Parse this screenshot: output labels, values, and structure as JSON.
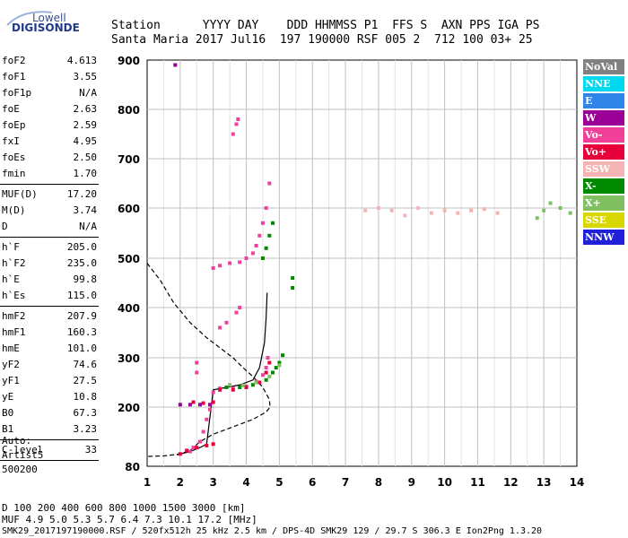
{
  "logo": {
    "brand_top": "Lowell",
    "brand_bottom": "DIGISONDE"
  },
  "header": {
    "row1": "Station      YYYY DAY    DDD HHMMSS P1  FFS S  AXN PPS IGA PS",
    "row2": "Santa Maria 2017 Jul16  197 190000 RSF 005 2  712 100 03+ 25"
  },
  "params": [
    [
      {
        "name": "foF2",
        "value": "4.613"
      },
      {
        "name": "foF1",
        "value": "3.55"
      },
      {
        "name": "foF1p",
        "value": "N/A"
      },
      {
        "name": "foE",
        "value": "2.63"
      },
      {
        "name": "foEp",
        "value": "2.59"
      },
      {
        "name": "fxI",
        "value": "4.95"
      },
      {
        "name": "foEs",
        "value": "2.50"
      },
      {
        "name": "fmin",
        "value": "1.70"
      }
    ],
    [
      {
        "name": "MUF(D)",
        "value": "17.20"
      },
      {
        "name": "M(D)",
        "value": "3.74"
      },
      {
        "name": "D",
        "value": "N/A"
      }
    ],
    [
      {
        "name": "h`F",
        "value": "205.0"
      },
      {
        "name": "h`F2",
        "value": "235.0"
      },
      {
        "name": "h`E",
        "value": "99.8"
      },
      {
        "name": "h`Es",
        "value": "115.0"
      }
    ],
    [
      {
        "name": "hmF2",
        "value": "207.9"
      },
      {
        "name": "hmF1",
        "value": "160.3"
      },
      {
        "name": "hmE",
        "value": "101.0"
      },
      {
        "name": "yF2",
        "value": "74.6"
      },
      {
        "name": "yF1",
        "value": "27.5"
      },
      {
        "name": "yE",
        "value": "10.8"
      },
      {
        "name": "B0",
        "value": "67.3"
      },
      {
        "name": "B1",
        "value": "3.23"
      }
    ],
    [
      {
        "name": "C-level",
        "value": "33"
      }
    ]
  ],
  "auto": {
    "line1": "Auto:",
    "line2": "Artist5",
    "line3": "500200"
  },
  "legend": [
    {
      "label": "NoVal",
      "color": "#808080"
    },
    {
      "label": "NNE",
      "color": "#00d8f0"
    },
    {
      "label": "E",
      "color": "#2f86e8"
    },
    {
      "label": "W",
      "color": "#9a0098"
    },
    {
      "label": "Vo-",
      "color": "#f0409a"
    },
    {
      "label": "Vo+",
      "color": "#e8003a"
    },
    {
      "label": "SSW",
      "color": "#f4b4b4"
    },
    {
      "label": "X-",
      "color": "#008a00"
    },
    {
      "label": "X+",
      "color": "#80c060"
    },
    {
      "label": "SSE",
      "color": "#d8d800"
    },
    {
      "label": "NNW",
      "color": "#2020d8"
    }
  ],
  "footer": {
    "d_line": "D     100  200  400  600  800 1000 1500 3000 [km]",
    "muf_line": "MUF   4.9  5.0  5.3  5.7  6.4  7.3 10.1 17.2 [MHz]",
    "status": "SMK29_2017197190000.RSF / 520fx512h 25 kHz 2.5 km / DPS-4D SMK29 129 / 29.7 S 306.3 E Ion2Png 1.3.20"
  },
  "chart_data": {
    "type": "scatter",
    "xlim": [
      1,
      14
    ],
    "ylim": [
      80,
      900
    ],
    "x_ticks": [
      1,
      2,
      3,
      4,
      5,
      6,
      7,
      8,
      9,
      10,
      11,
      12,
      13,
      14
    ],
    "y_ticks": [
      80,
      200,
      300,
      400,
      500,
      600,
      700,
      800,
      900
    ],
    "grid": true,
    "series": [
      {
        "name": "Vo-",
        "color": "#f0409a",
        "points": [
          [
            2.3,
            110
          ],
          [
            2.4,
            118
          ],
          [
            2.6,
            130
          ],
          [
            2.7,
            150
          ],
          [
            2.8,
            175
          ],
          [
            2.9,
            195
          ],
          [
            3.0,
            230
          ],
          [
            3.2,
            238
          ],
          [
            3.6,
            238
          ],
          [
            4.0,
            242
          ],
          [
            4.3,
            252
          ],
          [
            4.5,
            265
          ],
          [
            4.6,
            280
          ],
          [
            4.65,
            300
          ],
          [
            3.2,
            360
          ],
          [
            3.4,
            370
          ],
          [
            3.7,
            390
          ],
          [
            3.8,
            400
          ],
          [
            2.5,
            270
          ],
          [
            2.5,
            290
          ],
          [
            3.0,
            480
          ],
          [
            3.2,
            485
          ],
          [
            3.5,
            490
          ],
          [
            3.8,
            492
          ],
          [
            4.0,
            500
          ],
          [
            4.2,
            510
          ],
          [
            4.3,
            525
          ],
          [
            4.4,
            545
          ],
          [
            4.5,
            570
          ],
          [
            4.6,
            600
          ],
          [
            4.7,
            650
          ],
          [
            3.6,
            750
          ],
          [
            3.7,
            770
          ],
          [
            3.75,
            780
          ]
        ]
      },
      {
        "name": "Vo+",
        "color": "#e8003a",
        "points": [
          [
            2.0,
            105
          ],
          [
            2.2,
            112
          ],
          [
            2.5,
            118
          ],
          [
            2.8,
            122
          ],
          [
            3.0,
            125
          ],
          [
            3.2,
            235
          ],
          [
            3.6,
            235
          ],
          [
            4.0,
            240
          ],
          [
            4.4,
            250
          ],
          [
            4.6,
            270
          ],
          [
            4.7,
            290
          ],
          [
            2.4,
            210
          ],
          [
            2.7,
            208
          ],
          [
            3.0,
            210
          ]
        ]
      },
      {
        "name": "X-",
        "color": "#008a00",
        "points": [
          [
            3.4,
            240
          ],
          [
            3.8,
            240
          ],
          [
            4.2,
            245
          ],
          [
            4.6,
            255
          ],
          [
            4.8,
            270
          ],
          [
            4.9,
            280
          ],
          [
            5.0,
            290
          ],
          [
            5.1,
            305
          ],
          [
            4.5,
            500
          ],
          [
            4.6,
            520
          ],
          [
            4.7,
            545
          ],
          [
            4.8,
            570
          ],
          [
            5.4,
            440
          ],
          [
            5.4,
            460
          ]
        ]
      },
      {
        "name": "X+",
        "color": "#80c060",
        "points": [
          [
            3.5,
            245
          ],
          [
            3.9,
            244
          ],
          [
            4.3,
            250
          ],
          [
            4.7,
            262
          ],
          [
            5.0,
            285
          ],
          [
            13.0,
            595
          ],
          [
            13.5,
            600
          ],
          [
            13.8,
            590
          ],
          [
            13.2,
            610
          ],
          [
            12.8,
            580
          ]
        ]
      },
      {
        "name": "SSW",
        "color": "#f4b4b4",
        "points": [
          [
            7.6,
            595
          ],
          [
            8.0,
            600
          ],
          [
            8.4,
            595
          ],
          [
            8.8,
            585
          ],
          [
            9.2,
            600
          ],
          [
            9.6,
            590
          ],
          [
            10.0,
            595
          ],
          [
            10.4,
            590
          ],
          [
            10.8,
            595
          ],
          [
            11.2,
            598
          ],
          [
            11.6,
            590
          ]
        ]
      },
      {
        "name": "W",
        "color": "#9a0098",
        "points": [
          [
            2.0,
            205
          ],
          [
            2.3,
            205
          ],
          [
            2.6,
            205
          ],
          [
            2.9,
            205
          ],
          [
            1.85,
            890
          ]
        ]
      }
    ],
    "profile": {
      "name": "electron density profile",
      "points": [
        [
          1,
          490
        ],
        [
          1.4,
          455
        ],
        [
          1.8,
          410
        ],
        [
          2.3,
          370
        ],
        [
          2.8,
          340
        ],
        [
          3.2,
          320
        ],
        [
          3.6,
          300
        ],
        [
          3.9,
          280
        ],
        [
          4.2,
          262
        ],
        [
          4.5,
          240
        ],
        [
          4.7,
          215
        ],
        [
          4.72,
          200
        ],
        [
          4.6,
          190
        ],
        [
          4.2,
          175
        ],
        [
          3.6,
          160
        ],
        [
          3.0,
          145
        ],
        [
          2.6,
          130
        ],
        [
          2.3,
          112
        ],
        [
          2.0,
          105
        ],
        [
          1.5,
          101
        ],
        [
          1.0,
          100
        ]
      ]
    },
    "trace_black": [
      [
        1.9,
        103
      ],
      [
        2.3,
        110
      ],
      [
        2.6,
        118
      ],
      [
        2.8,
        125
      ],
      [
        3.0,
        235
      ],
      [
        3.4,
        240
      ],
      [
        3.8,
        245
      ],
      [
        4.2,
        255
      ],
      [
        4.4,
        280
      ],
      [
        4.55,
        330
      ],
      [
        4.6,
        380
      ],
      [
        4.63,
        430
      ]
    ]
  }
}
